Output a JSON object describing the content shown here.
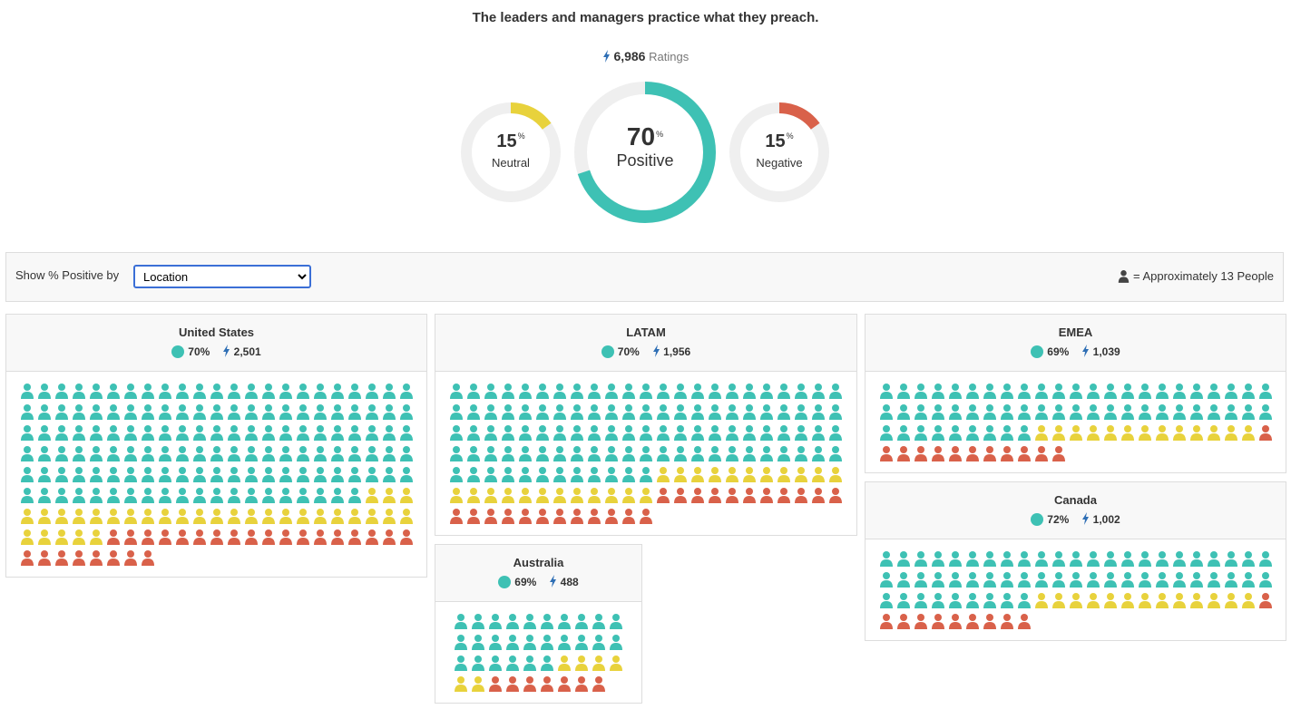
{
  "title": "The leaders and managers practice what they preach.",
  "ratings": {
    "count": "6,986",
    "label": "Ratings"
  },
  "donuts": {
    "neutral": {
      "value": "15",
      "unit": "%",
      "label": "Neutral",
      "fraction": 0.15,
      "color": "#e8d23c"
    },
    "positive": {
      "value": "70",
      "unit": "%",
      "label": "Positive",
      "fraction": 0.7,
      "color": "#3ec1b4"
    },
    "negative": {
      "value": "15",
      "unit": "%",
      "label": "Negative",
      "fraction": 0.15,
      "color": "#d9614a"
    }
  },
  "toolbar": {
    "show_label": "Show % Positive by",
    "select_value": "Location",
    "legend_text": "= Approximately 13 People",
    "legend_icon": "person-icon"
  },
  "colors": {
    "positive": "#3ec1b4",
    "neutral": "#e8d23c",
    "negative": "#d9614a",
    "bolt": "#2f6fb5"
  },
  "regions": [
    {
      "name": "United States",
      "positive_pct": "70%",
      "ratings": "2,501",
      "columns": 23,
      "positive": 135,
      "neutral": 31,
      "negative": 26
    },
    {
      "name": "LATAM",
      "positive_pct": "70%",
      "ratings": "1,956",
      "columns": 23,
      "positive": 104,
      "neutral": 23,
      "negative": 23
    },
    {
      "name": "EMEA",
      "positive_pct": "69%",
      "ratings": "1,039",
      "columns": 23,
      "positive": 55,
      "neutral": 13,
      "negative": 12
    },
    {
      "name": "Australia",
      "positive_pct": "69%",
      "ratings": "488",
      "columns": 10,
      "positive": 26,
      "neutral": 6,
      "negative": 7
    },
    {
      "name": "Canada",
      "positive_pct": "72%",
      "ratings": "1,002",
      "columns": 23,
      "positive": 55,
      "neutral": 13,
      "negative": 10
    }
  ]
}
